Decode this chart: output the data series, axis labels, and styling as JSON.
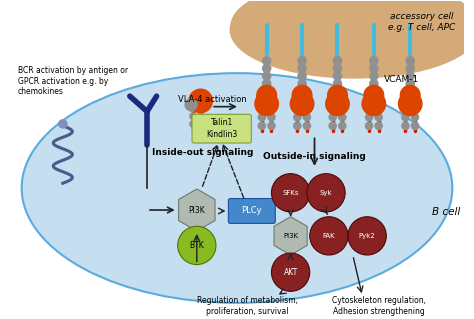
{
  "bg_color": "#ffffff",
  "cell_color": "#c5dff0",
  "cell_edge_color": "#5aabe0",
  "acc_color": "#d4aa78",
  "vcam_color": "#44bbdd",
  "vcam_label": "VCAM-1",
  "acc_label": "accessory cell\ne.g. T cell, APC",
  "bcr_label": "BCR activation by antigen or\nGPCR activation e.g. by\nchemokines",
  "inside_out_label": "Inside-out signaling",
  "outside_in_label": "Outside-in signaling",
  "vla4_label": "VLA-4 activation",
  "talin_label": "Talin1\nKindlin3",
  "talin_color": "#c8e080",
  "talin_edge": "#80a030",
  "plcy_color": "#4488cc",
  "plcy_label": "PLCy",
  "pi3k_color": "#b0bab0",
  "pi3k_label": "PI3K",
  "pi3k_edge": "#707870",
  "btk_color": "#88bb22",
  "btk_label": "BTK",
  "btk_edge": "#507010",
  "sfk_color": "#882222",
  "sfk_label": "SFKs",
  "syk_color": "#882222",
  "syk_label": "Syk",
  "fak_color": "#882222",
  "fak_label": "FAK",
  "pyk2_color": "#882222",
  "pyk2_label": "Pyk2",
  "akt_color": "#882222",
  "akt_label": "AKT",
  "bcell_label": "B cell",
  "metabolism_label": "Regulation of metabolism,\nproliferation, survival",
  "cytoskeleton_label": "Cytoskeleton regulation,\nAdhesion strengthening",
  "integrin_orange": "#dd4400",
  "integrin_red": "#cc2200",
  "integrin_gray": "#909090",
  "arrow_color": "#222222"
}
